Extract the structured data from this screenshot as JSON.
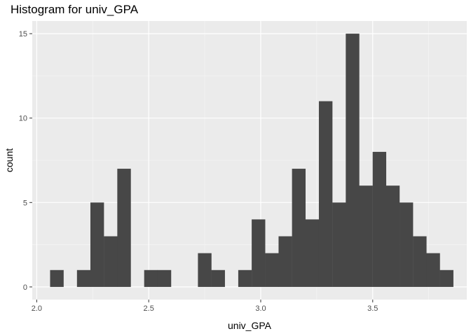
{
  "chart_data": {
    "type": "bar",
    "title": "Histogram for univ_GPA",
    "xlabel": "univ_GPA",
    "ylabel": "count",
    "bin_width": 0.0606,
    "bins": [
      {
        "x": 2.09,
        "count": 1
      },
      {
        "x": 2.15,
        "count": 0
      },
      {
        "x": 2.21,
        "count": 1
      },
      {
        "x": 2.27,
        "count": 5
      },
      {
        "x": 2.33,
        "count": 3
      },
      {
        "x": 2.39,
        "count": 7
      },
      {
        "x": 2.45,
        "count": 0
      },
      {
        "x": 2.51,
        "count": 1
      },
      {
        "x": 2.57,
        "count": 1
      },
      {
        "x": 2.63,
        "count": 0
      },
      {
        "x": 2.69,
        "count": 0
      },
      {
        "x": 2.75,
        "count": 2
      },
      {
        "x": 2.81,
        "count": 1
      },
      {
        "x": 2.87,
        "count": 0
      },
      {
        "x": 2.93,
        "count": 1
      },
      {
        "x": 2.99,
        "count": 4
      },
      {
        "x": 3.05,
        "count": 2
      },
      {
        "x": 3.11,
        "count": 3
      },
      {
        "x": 3.17,
        "count": 7
      },
      {
        "x": 3.23,
        "count": 4
      },
      {
        "x": 3.29,
        "count": 11
      },
      {
        "x": 3.35,
        "count": 5
      },
      {
        "x": 3.41,
        "count": 15
      },
      {
        "x": 3.47,
        "count": 6
      },
      {
        "x": 3.53,
        "count": 8
      },
      {
        "x": 3.59,
        "count": 6
      },
      {
        "x": 3.65,
        "count": 5
      },
      {
        "x": 3.71,
        "count": 3
      },
      {
        "x": 3.77,
        "count": 2
      },
      {
        "x": 3.83,
        "count": 1
      }
    ],
    "x_ticks": [
      2.0,
      2.5,
      3.0,
      3.5
    ],
    "x_tick_labels": [
      "2.0",
      "2.5",
      "3.0",
      "3.5"
    ],
    "y_ticks": [
      0,
      5,
      10,
      15
    ],
    "y_tick_labels": [
      "0",
      "5",
      "10",
      "15"
    ],
    "xlim": [
      1.98,
      3.92
    ],
    "ylim": [
      -0.75,
      15.75
    ],
    "grid": true,
    "colors": {
      "panel": "#ebebeb",
      "bar": "#474747",
      "grid_major": "#ffffff",
      "grid_minor": "#f6f6f6",
      "tick": "#333333"
    }
  }
}
